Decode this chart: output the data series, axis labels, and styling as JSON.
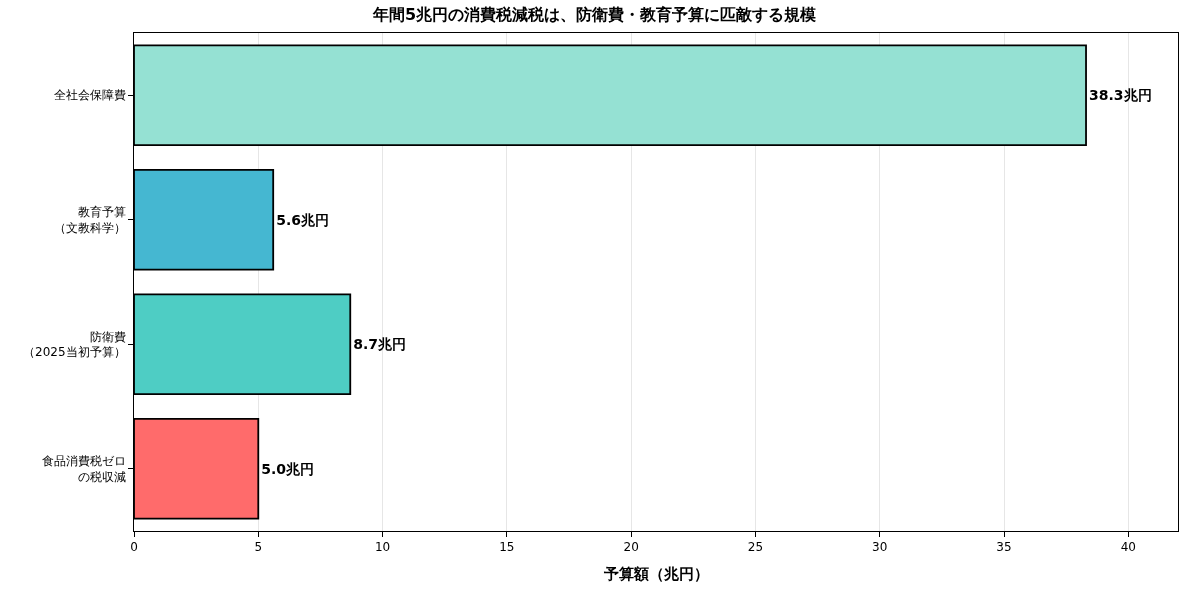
{
  "chart_data": {
    "type": "bar",
    "orientation": "horizontal",
    "title": "年間5兆円の消費税減税は、防衛費・教育予算に匹敵する規模",
    "xlabel": "予算額（兆円）",
    "categories": [
      "全社会保障費",
      "教育予算（文教科学）",
      "防衛費（2025当初予算）",
      "食品消費税ゼロの税収減"
    ],
    "values": [
      38.3,
      5.6,
      8.7,
      5.0
    ],
    "colors": [
      "#95e1d3",
      "#45b7d1",
      "#4ecdc4",
      "#ff6b6b"
    ],
    "value_labels": [
      "38.3兆円",
      "5.6兆円",
      "8.7兆円",
      "5.0兆円"
    ],
    "xlim": [
      0,
      42
    ],
    "xticks": [
      0,
      5,
      10,
      15,
      20,
      25,
      30,
      35,
      40
    ],
    "grid": "x"
  }
}
